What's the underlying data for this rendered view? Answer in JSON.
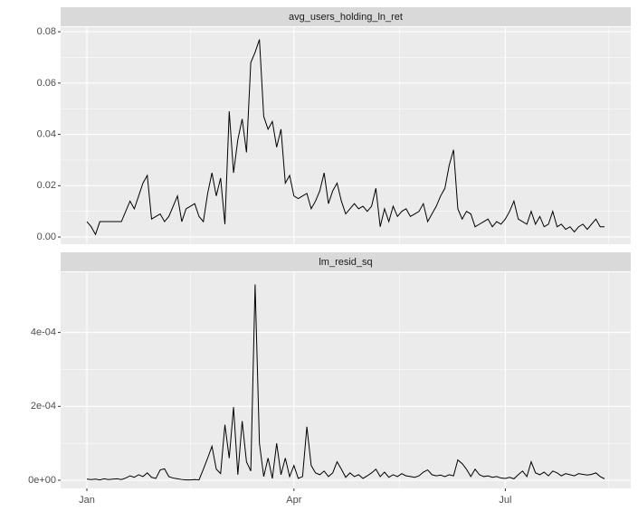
{
  "chart_data": [
    {
      "type": "line",
      "title": "avg_users_holding_ln_ret",
      "color": "#000000",
      "grid": true,
      "ylim": [
        -0.0028,
        0.0818
      ],
      "yticks": [
        {
          "value": 0,
          "label": "0.00"
        },
        0.02,
        0.04,
        0.06,
        0.08
      ],
      "values": [
        0.006,
        0.004,
        0.001,
        0.006,
        0.006,
        0.006,
        0.006,
        0.006,
        0.006,
        0.01,
        0.014,
        0.011,
        0.016,
        0.021,
        0.024,
        0.007,
        0.008,
        0.009,
        0.006,
        0.008,
        0.012,
        0.016,
        0.006,
        0.011,
        0.012,
        0.013,
        0.008,
        0.006,
        0.017,
        0.025,
        0.016,
        0.023,
        0.005,
        0.049,
        0.025,
        0.038,
        0.046,
        0.033,
        0.068,
        0.072,
        0.077,
        0.047,
        0.042,
        0.045,
        0.035,
        0.042,
        0.021,
        0.024,
        0.016,
        0.015,
        0.016,
        0.017,
        0.011,
        0.014,
        0.018,
        0.025,
        0.013,
        0.018,
        0.021,
        0.014,
        0.009,
        0.011,
        0.013,
        0.011,
        0.012,
        0.01,
        0.012,
        0.019,
        0.004,
        0.011,
        0.006,
        0.012,
        0.008,
        0.01,
        0.011,
        0.008,
        0.009,
        0.01,
        0.013,
        0.006,
        0.009,
        0.012,
        0.016,
        0.019,
        0.028,
        0.034,
        0.011,
        0.007,
        0.01,
        0.009,
        0.004,
        0.005,
        0.006,
        0.007,
        0.004,
        0.006,
        0.005,
        0.007,
        0.01,
        0.014,
        0.007,
        0.006,
        0.005,
        0.01,
        0.005,
        0.008,
        0.004,
        0.005,
        0.01,
        0.004,
        0.005,
        0.003,
        0.004,
        0.002,
        0.004,
        0.005,
        0.003,
        0.005,
        0.007,
        0.004,
        0.004
      ]
    },
    {
      "type": "line",
      "title": "lm_resid_sq",
      "color": "#000000",
      "grid": true,
      "ylim": [
        -2.2e-05,
        0.000563
      ],
      "yticks": [
        {
          "value": 0,
          "label": "0e+00"
        },
        {
          "value": 0.0002,
          "label": "2e-04"
        },
        {
          "value": 0.0004,
          "label": "4e-04"
        }
      ],
      "categories": [
        "Jan",
        null,
        null,
        null,
        null,
        null,
        null,
        null,
        null,
        null,
        null,
        null,
        null,
        null,
        null,
        null,
        null,
        null,
        null,
        null,
        null,
        null,
        null,
        null,
        null,
        null,
        null,
        null,
        null,
        null,
        null,
        null,
        null,
        null,
        null,
        null,
        null,
        null,
        null,
        null,
        null,
        null,
        null,
        null,
        null,
        null,
        null,
        null,
        "Apr",
        null,
        null,
        null,
        null,
        null,
        null,
        null,
        null,
        null,
        null,
        null,
        null,
        null,
        null,
        null,
        null,
        null,
        null,
        null,
        null,
        null,
        null,
        null,
        null,
        null,
        null,
        null,
        null,
        null,
        null,
        null,
        null,
        null,
        null,
        null,
        null,
        null,
        null,
        null,
        null,
        null,
        null,
        null,
        null,
        null,
        null,
        null,
        null,
        "Jul",
        null,
        null,
        null,
        null,
        null,
        null,
        null,
        null,
        null,
        null,
        null,
        null,
        null,
        null,
        null,
        null,
        null,
        null,
        null,
        null,
        null,
        null,
        null
      ],
      "values": [
        3e-06,
        2e-06,
        3e-06,
        1e-06,
        4e-06,
        2e-06,
        3e-06,
        4e-06,
        2e-06,
        6e-06,
        1.2e-05,
        8e-06,
        1.5e-05,
        1e-05,
        2e-05,
        8e-06,
        5e-06,
        2.8e-05,
        3.1e-05,
        1e-05,
        6e-06,
        4e-06,
        2e-06,
        1e-06,
        1e-06,
        2e-06,
        1e-06,
        3e-05,
        6e-05,
        9.2e-05,
        3e-05,
        1.8e-05,
        0.00015,
        6e-05,
        0.000198,
        1.5e-05,
        0.00016,
        5e-05,
        2.5e-05,
        0.00053,
        0.0001,
        1e-05,
        6e-05,
        5e-06,
        0.0001,
        1.5e-05,
        6e-05,
        1e-05,
        4e-05,
        5e-06,
        1e-05,
        0.000145,
        4e-05,
        2e-05,
        1.5e-05,
        2.5e-05,
        1e-05,
        2e-05,
        5e-05,
        3e-05,
        8e-06,
        2e-05,
        1e-05,
        1.5e-05,
        5e-06,
        1.2e-05,
        2e-05,
        3e-05,
        1e-05,
        2.2e-05,
        8e-06,
        1.5e-05,
        1e-05,
        1.8e-05,
        1.2e-05,
        1e-05,
        8e-06,
        1.2e-05,
        2.2e-05,
        2.8e-05,
        1.5e-05,
        1.2e-05,
        1.4e-05,
        1e-05,
        1.5e-05,
        1.2e-05,
        5.5e-05,
        4.5e-05,
        3e-05,
        1e-05,
        3e-05,
        1.5e-05,
        1e-05,
        1.2e-05,
        8e-06,
        1e-05,
        6e-06,
        5e-06,
        8e-06,
        4e-06,
        1.5e-05,
        2.5e-05,
        1e-05,
        5e-05,
        2e-05,
        1.5e-05,
        2.2e-05,
        1.2e-05,
        2.5e-05,
        2e-05,
        1.2e-05,
        1.8e-05,
        1.5e-05,
        1.2e-05,
        1.8e-05,
        1.6e-05,
        1.4e-05,
        1.6e-05,
        2e-05,
        1e-05,
        4e-06
      ]
    }
  ]
}
